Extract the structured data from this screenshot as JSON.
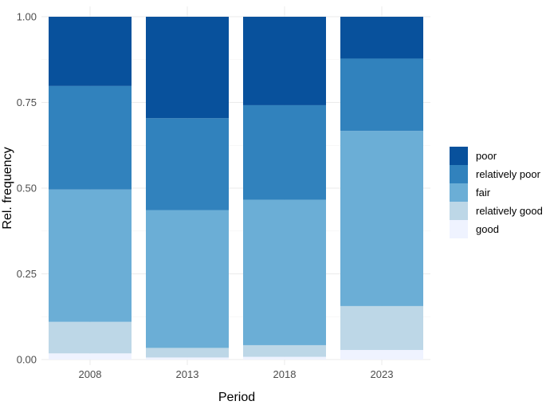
{
  "chart_data": {
    "type": "bar",
    "stacked": true,
    "xlabel": "Period",
    "ylabel": "Rel. frequency",
    "ylim": [
      0,
      1
    ],
    "yticks": [
      "0.00",
      "0.25",
      "0.50",
      "0.75",
      "1.00"
    ],
    "grid": true,
    "legend_position": "right",
    "categories": [
      "2008",
      "2013",
      "2018",
      "2023"
    ],
    "series": [
      {
        "name": "good",
        "color": "#eff3ff",
        "values": [
          0.018,
          0.006,
          0.008,
          0.028
        ]
      },
      {
        "name": "relatively good",
        "color": "#bdd7e7",
        "values": [
          0.092,
          0.028,
          0.034,
          0.128
        ]
      },
      {
        "name": "fair",
        "color": "#6baed6",
        "values": [
          0.386,
          0.402,
          0.424,
          0.511
        ]
      },
      {
        "name": "relatively poor",
        "color": "#3182bd",
        "values": [
          0.302,
          0.268,
          0.276,
          0.211
        ]
      },
      {
        "name": "poor",
        "color": "#08519c",
        "values": [
          0.202,
          0.296,
          0.258,
          0.122
        ]
      }
    ]
  }
}
